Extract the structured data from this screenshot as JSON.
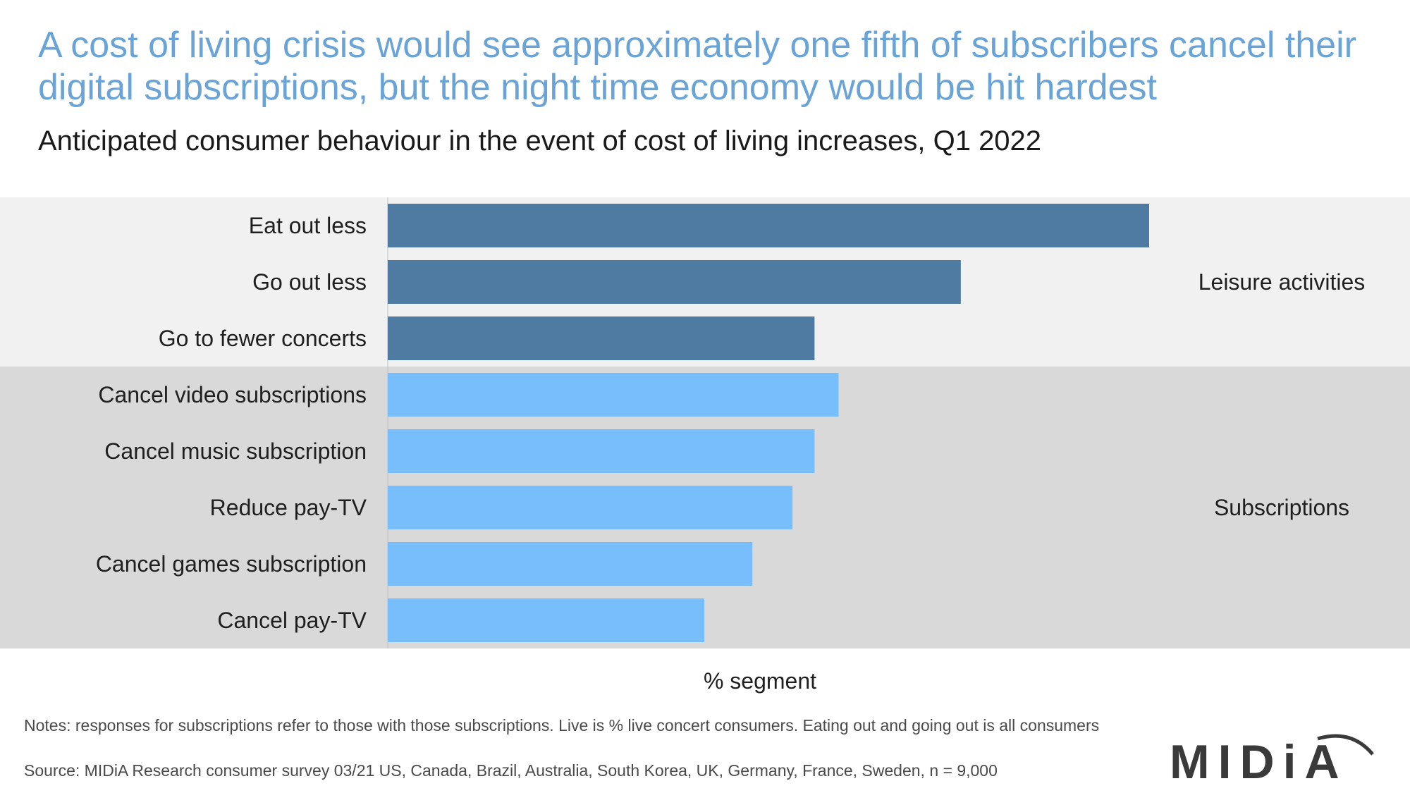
{
  "title": "A cost of living crisis would see approximately one fifth of subscribers cancel their digital subscriptions, but the night time economy would be hit hardest",
  "subtitle": "Anticipated consumer behaviour in the event of cost of living increases, Q1 2022",
  "chart_data": {
    "type": "bar",
    "orientation": "horizontal",
    "categories": [
      "Eat out less",
      "Go out less",
      "Go to fewer concerts",
      "Cancel video subscriptions",
      "Cancel music subscription",
      "Reduce pay-TV",
      "Cancel games subscription",
      "Cancel pay-TV"
    ],
    "values": [
      38,
      28.6,
      21.3,
      22.5,
      21.3,
      20.2,
      18.2,
      15.8
    ],
    "groups": [
      {
        "name": "Leisure activities",
        "categories": [
          "Eat out less",
          "Go out less",
          "Go to fewer concerts"
        ],
        "color": "#4f7ba2",
        "band_color": "#f1f1f1"
      },
      {
        "name": "Subscriptions",
        "categories": [
          "Cancel video subscriptions",
          "Cancel music subscription",
          "Reduce pay-TV",
          "Cancel games subscription",
          "Cancel pay-TV"
        ],
        "color": "#78bdfc",
        "band_color": "#d9d9d9"
      }
    ],
    "xlabel": "% segment",
    "ylabel": "",
    "xlim": [
      0,
      45
    ],
    "grid": false,
    "legend": "none"
  },
  "notes": "Notes: responses for subscriptions refer to those with those subscriptions. Live is % live concert consumers. Eating out and going out is all consumers",
  "source": "Source: MIDiA Research consumer survey 03/21 US, Canada, Brazil, Australia, South Korea, UK, Germany, France, Sweden, n = 9,000",
  "logo": {
    "text": "MIDiA",
    "color": "#3a3a3a"
  }
}
